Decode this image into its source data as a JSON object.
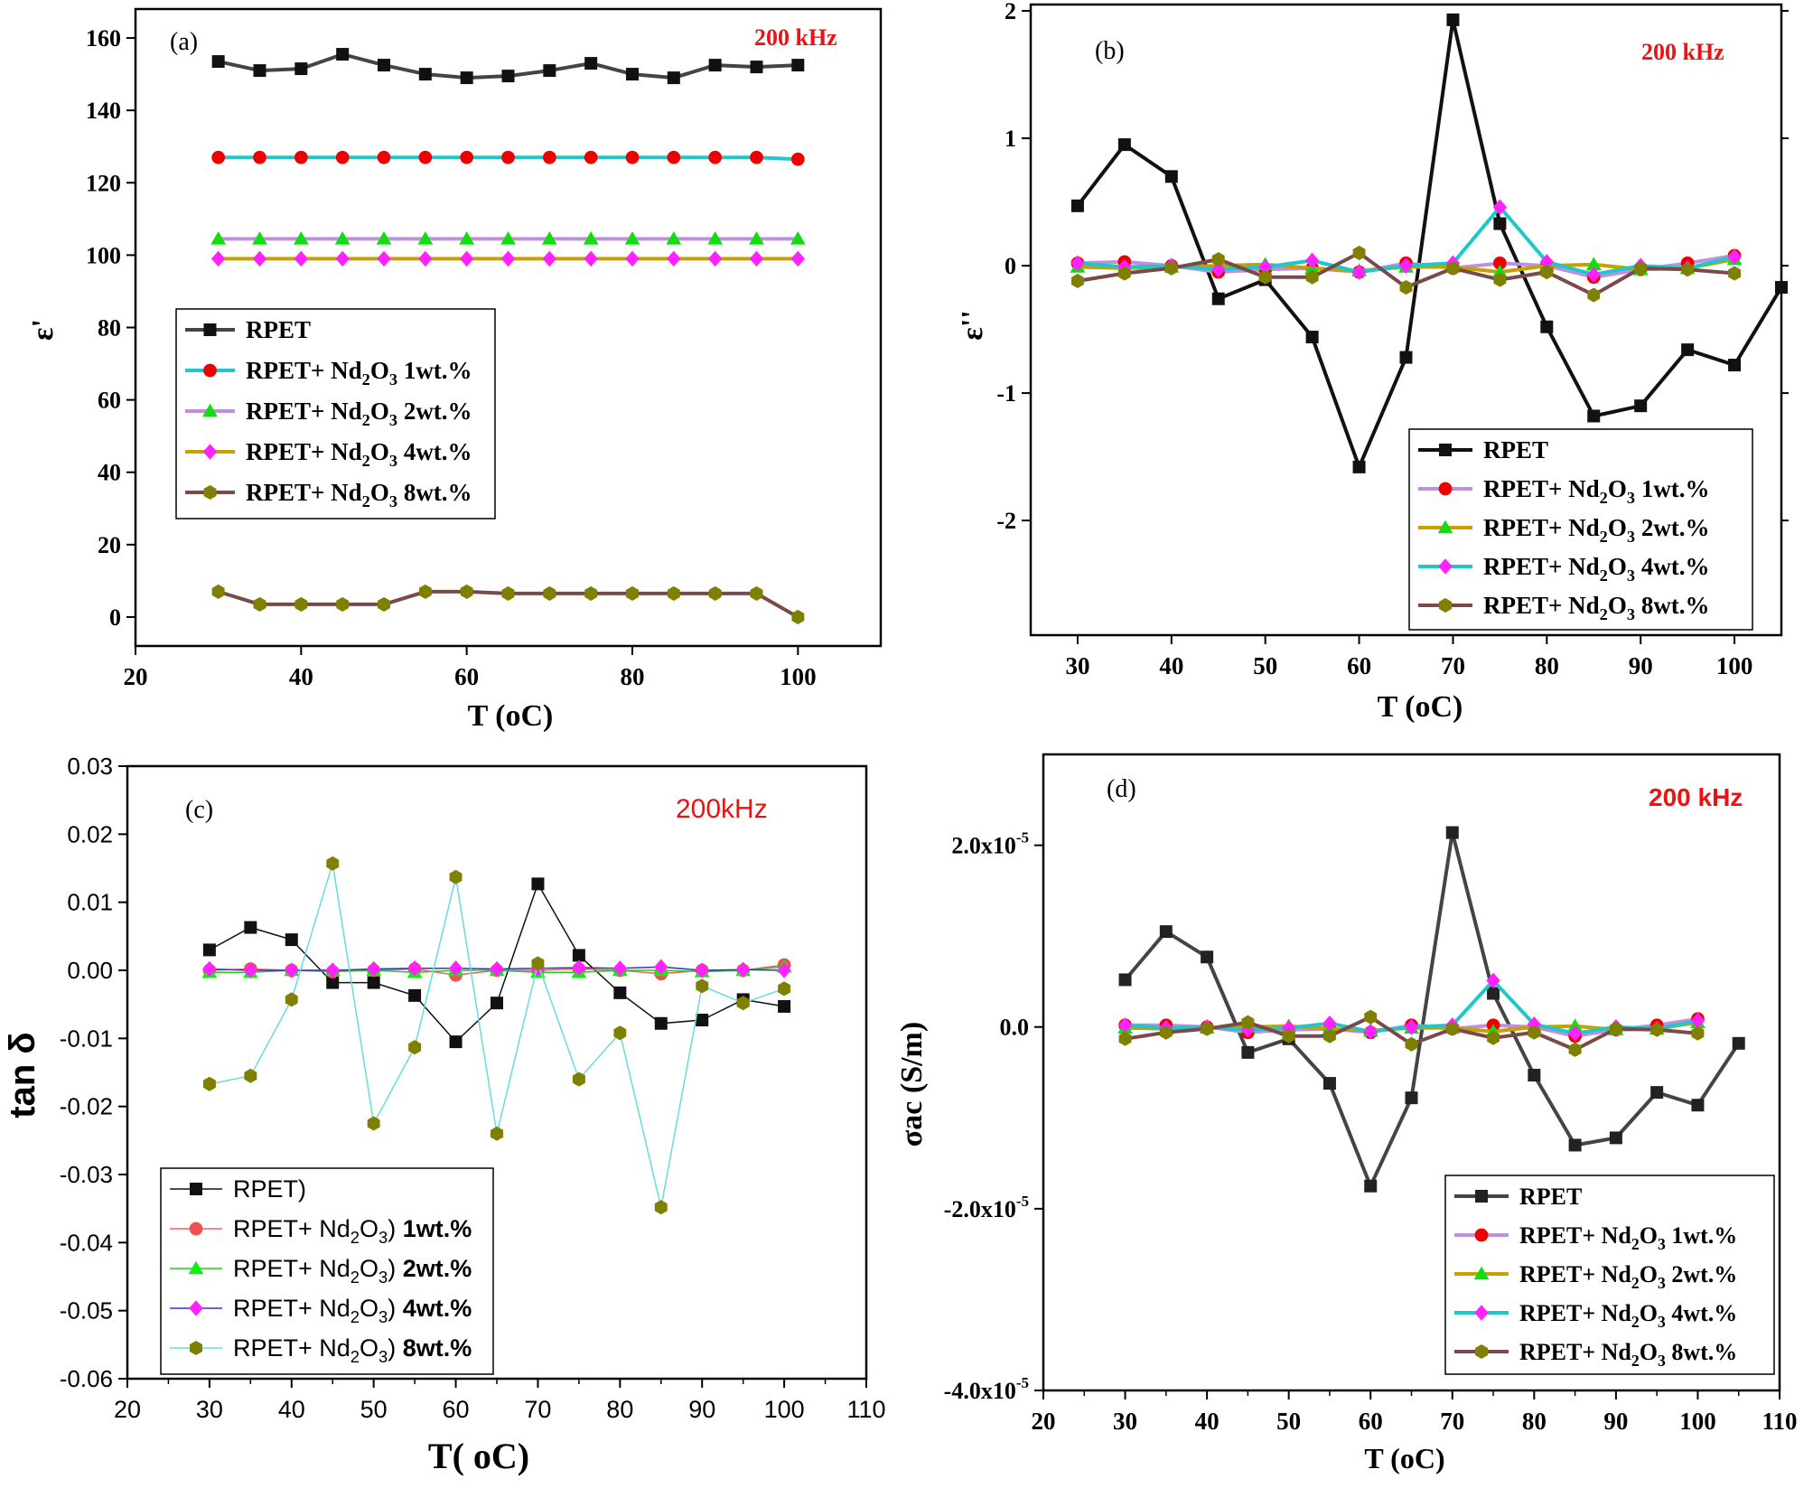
{
  "chart_data": [
    {
      "id": "a",
      "type": "line",
      "panel_label": "(a)",
      "annotation": "200 kHz",
      "xlabel": "T (oC)",
      "ylabel": "ε'",
      "xlim": [
        20,
        110
      ],
      "ylim": [
        -8,
        168
      ],
      "xticks": [
        "20",
        "40",
        "60",
        "80",
        "100"
      ],
      "xtick_values": [
        20,
        40,
        60,
        80,
        100
      ],
      "yticks": [
        "0",
        "20",
        "40",
        "60",
        "80",
        "100",
        "120",
        "140",
        "160"
      ],
      "ytick_values": [
        0,
        20,
        40,
        60,
        80,
        100,
        120,
        140,
        160
      ],
      "x": [
        30,
        35,
        40,
        45,
        50,
        55,
        60,
        65,
        70,
        75,
        80,
        85,
        90,
        95,
        100
      ],
      "legend_placement": "center-left",
      "series": [
        {
          "name": "RPET",
          "sub": "",
          "tail": "",
          "color": "#444444",
          "marker_color": "#111111",
          "marker": "square",
          "values": [
            153.5,
            151,
            151.5,
            155.5,
            152.5,
            150,
            149,
            149.5,
            151,
            153,
            150,
            149,
            152.5,
            152,
            152.5
          ]
        },
        {
          "name": "RPET+ Nd",
          "sub": "2",
          "name2": "O",
          "sub2": "3",
          "tail": " 1wt.%",
          "color": "#1fc8c8",
          "marker_color": "#ee0000",
          "marker": "circle",
          "values": [
            127,
            127,
            127,
            127,
            127,
            127,
            127,
            127,
            127,
            127,
            127,
            127,
            127,
            127,
            126.5
          ]
        },
        {
          "name": "RPET+ Nd",
          "sub": "2",
          "name2": "O",
          "sub2": "3",
          "tail": " 2wt.%",
          "color": "#c090e0",
          "marker_color": "#11dd11",
          "marker": "triangle",
          "values": [
            104.5,
            104.5,
            104.5,
            104.5,
            104.5,
            104.5,
            104.5,
            104.5,
            104.5,
            104.5,
            104.5,
            104.5,
            104.5,
            104.5,
            104.5
          ]
        },
        {
          "name": "RPET+ Nd",
          "sub": "2",
          "name2": "O",
          "sub2": "3",
          "tail": " 4wt.%",
          "color": "#c8a000",
          "marker_color": "#ff22ff",
          "marker": "diamond",
          "values": [
            99,
            99,
            99,
            99,
            99,
            99,
            99,
            99,
            99,
            99,
            99,
            99,
            99,
            99,
            99
          ]
        },
        {
          "name": "RPET+ Nd",
          "sub": "2",
          "name2": "O",
          "sub2": "3",
          "tail": " 8wt.%",
          "color": "#7a4a4a",
          "marker_color": "#808000",
          "marker": "hexagon",
          "values": [
            7,
            3.5,
            3.5,
            3.5,
            3.5,
            7,
            7,
            6.5,
            6.5,
            6.5,
            6.5,
            6.5,
            6.5,
            6.5,
            0
          ]
        }
      ]
    },
    {
      "id": "b",
      "type": "line",
      "panel_label": "(b)",
      "annotation": "200 kHz",
      "xlabel": "T (oC)",
      "ylabel": "ε''",
      "xlim": [
        25,
        105
      ],
      "ylim": [
        -2.9,
        2.05
      ],
      "xticks": [
        "30",
        "40",
        "50",
        "60",
        "70",
        "80",
        "90",
        "100"
      ],
      "xtick_values": [
        30,
        40,
        50,
        60,
        70,
        80,
        90,
        100
      ],
      "yticks": [
        "2",
        "1",
        "0",
        "-1",
        "-2"
      ],
      "ytick_values": [
        2,
        1,
        0,
        -1,
        -2
      ],
      "legend_placement": "bottom-right",
      "series": [
        {
          "name": "RPET",
          "sub": "",
          "tail": "",
          "color": "#111111",
          "marker_color": "#111111",
          "marker": "square",
          "x": [
            30,
            35,
            40,
            45,
            50,
            55,
            60,
            65,
            70,
            75,
            80,
            85,
            90,
            95,
            100,
            105
          ],
          "values": [
            0.47,
            0.95,
            0.7,
            -0.26,
            -0.11,
            -0.56,
            -1.58,
            -0.72,
            1.93,
            0.33,
            -0.48,
            -1.18,
            -1.1,
            -0.66,
            -0.78,
            -0.17
          ]
        },
        {
          "name": "RPET+ Nd",
          "sub": "2",
          "name2": "O",
          "sub2": "3",
          "tail": " 1wt.%",
          "color": "#c090e0",
          "marker_color": "#ee0000",
          "marker": "circle",
          "x": [
            30,
            35,
            40,
            45,
            50,
            55,
            60,
            65,
            70,
            75,
            80,
            85,
            90,
            95,
            100
          ],
          "values": [
            0.02,
            0.03,
            0.0,
            -0.05,
            -0.03,
            -0.02,
            -0.05,
            0.02,
            -0.02,
            0.02,
            0.0,
            -0.09,
            -0.03,
            0.02,
            0.08
          ]
        },
        {
          "name": "RPET+ Nd",
          "sub": "2",
          "name2": "O",
          "sub2": "3",
          "tail": " 2wt.%",
          "color": "#c8a000",
          "marker_color": "#11dd11",
          "marker": "triangle",
          "x": [
            30,
            35,
            40,
            45,
            50,
            55,
            60,
            65,
            70,
            75,
            80,
            85,
            90,
            95,
            100
          ],
          "values": [
            -0.01,
            -0.02,
            -0.01,
            0.0,
            0.01,
            -0.02,
            -0.04,
            -0.01,
            -0.01,
            -0.05,
            0.0,
            0.01,
            -0.03,
            -0.02,
            0.05
          ]
        },
        {
          "name": "RPET+ Nd",
          "sub": "2",
          "name2": "O",
          "sub2": "3",
          "tail": " 4wt.%",
          "color": "#1fc8c8",
          "marker_color": "#ff22ff",
          "marker": "diamond",
          "x": [
            30,
            35,
            40,
            45,
            50,
            55,
            60,
            65,
            70,
            75,
            80,
            85,
            90,
            95,
            100
          ],
          "values": [
            0.02,
            -0.01,
            0.0,
            -0.03,
            -0.01,
            0.04,
            -0.05,
            0.0,
            0.02,
            0.46,
            0.03,
            -0.07,
            0.0,
            -0.02,
            0.07
          ]
        },
        {
          "name": "RPET+ Nd",
          "sub": "2",
          "name2": "O",
          "sub2": "3",
          "tail": " 8wt.%",
          "color": "#7a4a4a",
          "marker_color": "#808000",
          "marker": "hexagon",
          "x": [
            30,
            35,
            40,
            45,
            50,
            55,
            60,
            65,
            70,
            75,
            80,
            85,
            90,
            95,
            100
          ],
          "values": [
            -0.12,
            -0.06,
            -0.02,
            0.05,
            -0.09,
            -0.09,
            0.1,
            -0.17,
            -0.02,
            -0.11,
            -0.05,
            -0.23,
            -0.02,
            -0.03,
            -0.06
          ]
        }
      ]
    },
    {
      "id": "c",
      "type": "line",
      "panel_label": "(c)",
      "annotation": "200kHz",
      "xlabel": "T( oC)",
      "ylabel": "tan δ",
      "xlim": [
        20,
        110
      ],
      "ylim": [
        -0.06,
        0.03
      ],
      "xticks": [
        "20",
        "30",
        "40",
        "50",
        "60",
        "70",
        "80",
        "90",
        "100",
        "110"
      ],
      "xtick_values": [
        20,
        30,
        40,
        50,
        60,
        70,
        80,
        90,
        100,
        110
      ],
      "yticks": [
        "0.03",
        "0.02",
        "0.01",
        "0.00",
        "-0.01",
        "-0.02",
        "-0.03",
        "-0.04",
        "-0.05",
        "-0.06"
      ],
      "ytick_values": [
        0.03,
        0.02,
        0.01,
        0.0,
        -0.01,
        -0.02,
        -0.03,
        -0.04,
        -0.05,
        -0.06
      ],
      "x": [
        30,
        35,
        40,
        45,
        50,
        55,
        60,
        65,
        70,
        75,
        80,
        85,
        90,
        95,
        100
      ],
      "legend_placement": "bottom-left",
      "series": [
        {
          "name": "RPET)",
          "sub": "",
          "tail": "",
          "color": "#111111",
          "marker_color": "#111111",
          "marker": "square",
          "values": [
            0.003,
            0.0063,
            0.0045,
            -0.0018,
            -0.0018,
            -0.0037,
            -0.0105,
            -0.0048,
            0.0127,
            0.0022,
            -0.0033,
            -0.0078,
            -0.0073,
            -0.0043,
            -0.0053
          ]
        },
        {
          "name": "RPET+ Nd",
          "sub": "2",
          "name2": "O",
          "sub2": "3",
          "tail": ") ",
          "bold_tail": "1wt.%",
          "color": "#f06060",
          "marker_color": "#f05050",
          "marker": "circle",
          "values": [
            0.0,
            0.0002,
            0.0,
            -0.0002,
            0.0,
            0.0002,
            -0.0007,
            0.0,
            0.0,
            0.0002,
            0.0,
            -0.0005,
            0.0,
            0.0,
            0.0008
          ]
        },
        {
          "name": "RPET+ Nd",
          "sub": "2",
          "name2": "O",
          "sub2": "3",
          "tail": ") ",
          "bold_tail": "2wt.%",
          "color": "#22cc22",
          "marker_color": "#11ee11",
          "marker": "triangle",
          "values": [
            -0.0003,
            -0.0003,
            0.0,
            0.0,
            0.0,
            -0.0003,
            0.0,
            0.0,
            -0.0003,
            -0.0003,
            0.0,
            0.0,
            -0.0002,
            0.0,
            0.0005
          ]
        },
        {
          "name": "RPET+ Nd",
          "sub": "2",
          "name2": "O",
          "sub2": "3",
          "tail": ") ",
          "bold_tail": "4wt.%",
          "color": "#3333cc",
          "marker_color": "#ff22ff",
          "marker": "diamond",
          "values": [
            0.0002,
            0.0,
            0.0,
            0.0,
            0.0002,
            0.0003,
            0.0003,
            0.0002,
            0.0003,
            0.0004,
            0.0003,
            0.0005,
            0.0,
            0.0001,
            0.0
          ]
        },
        {
          "name": "RPET+ Nd",
          "sub": "2",
          "name2": "O",
          "sub2": "3",
          "tail": ") ",
          "bold_tail": "8wt.%",
          "color": "#66dddd",
          "marker_color": "#808000",
          "marker": "hexagon",
          "values": [
            -0.0167,
            -0.0155,
            -0.0043,
            0.0157,
            -0.0225,
            -0.0113,
            0.0137,
            -0.024,
            0.001,
            -0.016,
            -0.0092,
            -0.0348,
            -0.0023,
            -0.0048,
            -0.0027
          ]
        }
      ]
    },
    {
      "id": "d",
      "type": "line",
      "panel_label": "(d)",
      "annotation": "200 kHz",
      "xlabel": "T (oC)",
      "ylabel": "σac (S/m)",
      "xlim": [
        20,
        110
      ],
      "ylim": [
        -4e-05,
        3e-05
      ],
      "xticks": [
        "20",
        "30",
        "40",
        "50",
        "60",
        "70",
        "80",
        "90",
        "100",
        "110"
      ],
      "xtick_values": [
        20,
        30,
        40,
        50,
        60,
        70,
        80,
        90,
        100,
        110
      ],
      "yticks": [
        "2.0x10",
        "0.0",
        "-2.0x10",
        "-4.0x10"
      ],
      "ytick_exp": [
        "-5",
        "",
        "-5",
        "-5"
      ],
      "ytick_values": [
        2e-05,
        0.0,
        -2e-05,
        -4e-05
      ],
      "legend_placement": "bottom-right",
      "series": [
        {
          "name": "RPET",
          "sub": "",
          "tail": "",
          "color": "#444444",
          "marker_color": "#222222",
          "marker": "square",
          "x": [
            30,
            35,
            40,
            45,
            50,
            55,
            60,
            65,
            70,
            75,
            80,
            85,
            90,
            95,
            100,
            105
          ],
          "values": [
            5.2e-06,
            1.05e-05,
            7.7e-06,
            -2.8e-06,
            -1.3e-06,
            -6.2e-06,
            -1.75e-05,
            -7.8e-06,
            2.14e-05,
            3.7e-06,
            -5.3e-06,
            -1.3e-05,
            -1.22e-05,
            -7.2e-06,
            -8.6e-06,
            -1.8e-06
          ]
        },
        {
          "name": "RPET+ Nd",
          "sub": "2",
          "name2": "O",
          "sub2": "3",
          "tail": " 1wt.%",
          "color": "#c090e0",
          "marker_color": "#ee0000",
          "marker": "circle",
          "x": [
            30,
            35,
            40,
            45,
            50,
            55,
            60,
            65,
            70,
            75,
            80,
            85,
            90,
            95,
            100
          ],
          "values": [
            2e-07,
            2e-07,
            0,
            -6e-07,
            -3e-07,
            -2e-07,
            -6e-07,
            2e-07,
            -2e-07,
            2e-07,
            0,
            -1e-06,
            -3e-07,
            2e-07,
            9e-07
          ]
        },
        {
          "name": "RPET+ Nd",
          "sub": "2",
          "name2": "O",
          "sub2": "3",
          "tail": " 2wt.%",
          "color": "#c8a000",
          "marker_color": "#11dd11",
          "marker": "triangle",
          "x": [
            30,
            35,
            40,
            45,
            50,
            55,
            60,
            65,
            70,
            75,
            80,
            85,
            90,
            95,
            100
          ],
          "values": [
            -1e-07,
            -2e-07,
            -1e-07,
            0,
            1e-07,
            -2e-07,
            -4e-07,
            -1e-07,
            -1e-07,
            -5e-07,
            0,
            1e-07,
            -3e-07,
            -2e-07,
            5e-07
          ]
        },
        {
          "name": "RPET+ Nd",
          "sub": "2",
          "name2": "O",
          "sub2": "3",
          "tail": " 4wt.%",
          "color": "#1fc8c8",
          "marker_color": "#ff22ff",
          "marker": "diamond",
          "x": [
            30,
            35,
            40,
            45,
            50,
            55,
            60,
            65,
            70,
            75,
            80,
            85,
            90,
            95,
            100
          ],
          "values": [
            2e-07,
            -1e-07,
            0,
            -3e-07,
            -1e-07,
            4e-07,
            -5e-07,
            0,
            2e-07,
            5.1e-06,
            3e-07,
            -7e-07,
            0,
            -2e-07,
            7e-07
          ]
        },
        {
          "name": "RPET+ Nd",
          "sub": "2",
          "name2": "O",
          "sub2": "3",
          "tail": " 8wt.%",
          "color": "#7a4a4a",
          "marker_color": "#808000",
          "marker": "hexagon",
          "x": [
            30,
            35,
            40,
            45,
            50,
            55,
            60,
            65,
            70,
            75,
            80,
            85,
            90,
            95,
            100
          ],
          "values": [
            -1.3e-06,
            -6e-07,
            -2e-07,
            5e-07,
            -1e-06,
            -1e-06,
            1.1e-06,
            -1.9e-06,
            -2e-07,
            -1.2e-06,
            -6e-07,
            -2.5e-06,
            -2e-07,
            -3e-07,
            -7e-07
          ]
        }
      ]
    }
  ]
}
